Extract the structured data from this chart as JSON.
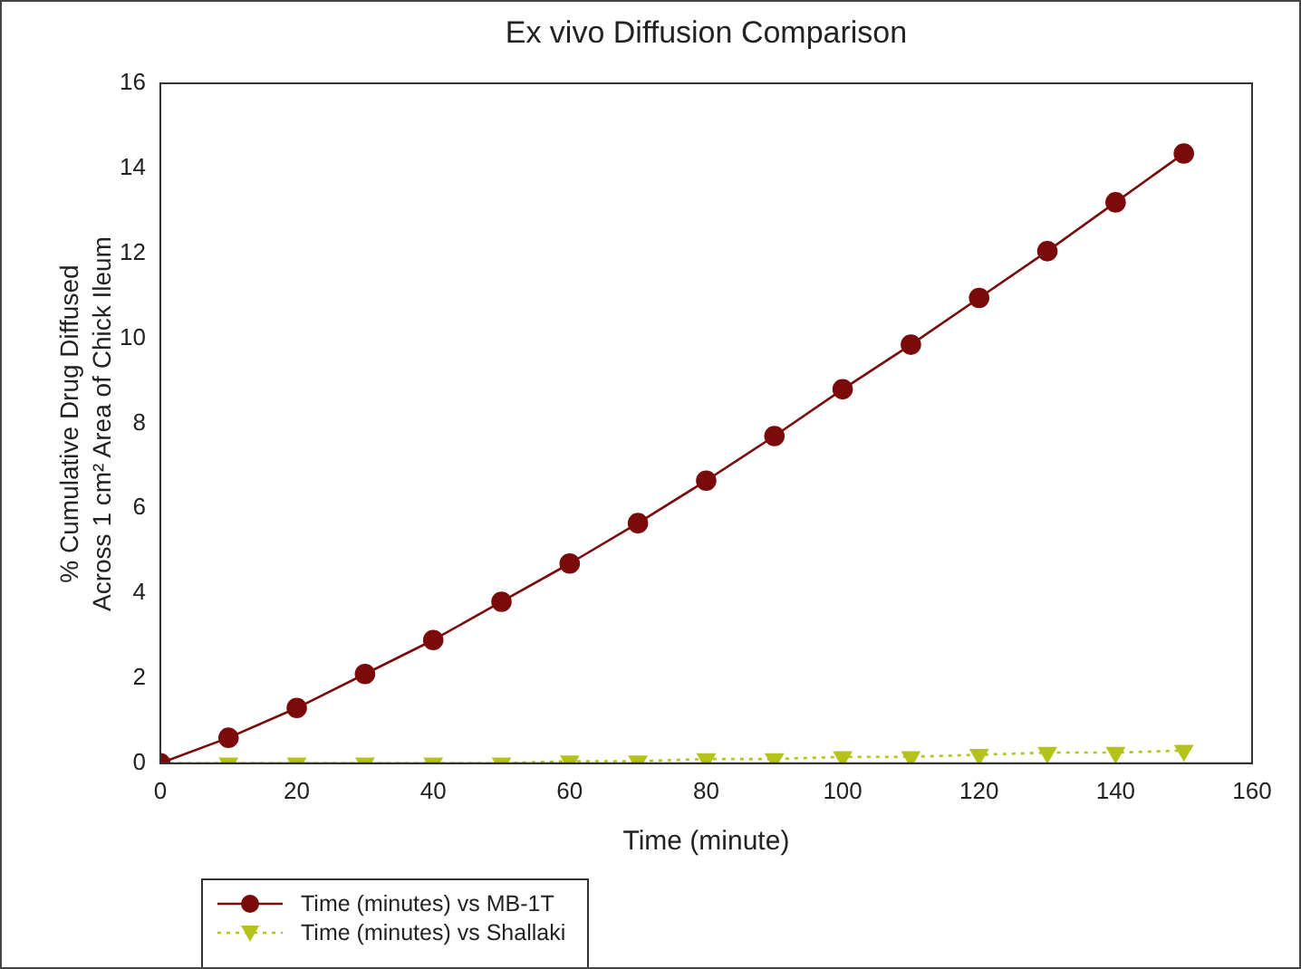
{
  "chart_data": {
    "type": "line",
    "title": "Ex vivo Diffusion Comparison",
    "xlabel": "Time (minute)",
    "ylabel": "% Cumulative Drug Diffused\nAcross 1 cm² Area of Chick Ileum",
    "x": [
      0,
      10,
      20,
      30,
      40,
      50,
      60,
      70,
      80,
      90,
      100,
      110,
      120,
      130,
      140,
      150
    ],
    "series": [
      {
        "name": "Time (minutes) vs MB-1T",
        "color": "#7b0a0a",
        "marker": "circle",
        "line_style": "solid",
        "values": [
          0,
          0.6,
          1.3,
          2.1,
          2.9,
          3.8,
          4.7,
          5.65,
          6.65,
          7.7,
          8.8,
          9.85,
          10.95,
          12.05,
          13.2,
          14.35
        ]
      },
      {
        "name": "Time (minutes) vs Shallaki",
        "color": "#b5c21a",
        "marker": "triangle",
        "line_style": "dotted",
        "values": [
          0,
          0,
          0,
          0,
          0,
          0,
          0.05,
          0.05,
          0.1,
          0.1,
          0.15,
          0.15,
          0.2,
          0.25,
          0.25,
          0.3
        ]
      }
    ],
    "xlim": [
      0,
      160
    ],
    "xticks": [
      0,
      20,
      40,
      60,
      80,
      100,
      120,
      140,
      160
    ],
    "ylim": [
      0,
      16
    ],
    "yticks": [
      0,
      2,
      4,
      6,
      8,
      10,
      12,
      14,
      16
    ],
    "grid": false,
    "legend": "bottom left"
  }
}
